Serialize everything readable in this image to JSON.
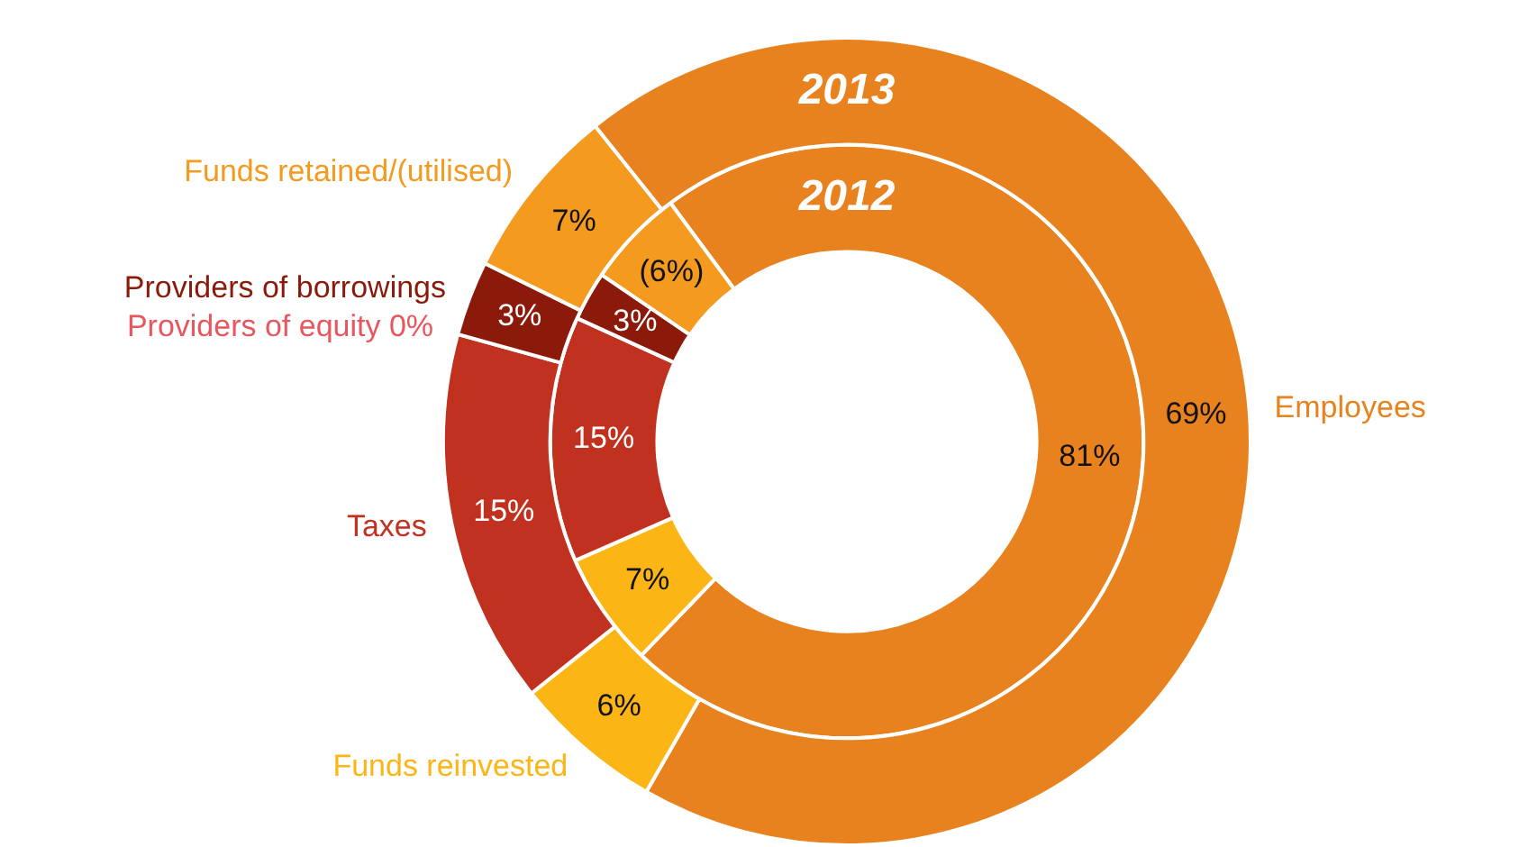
{
  "chart_data": {
    "type": "donut",
    "categories": [
      "Employees",
      "Funds reinvested",
      "Taxes",
      "Providers of equity",
      "Providers of borrowings",
      "Funds retained/(utilised)"
    ],
    "colors": [
      "#e8821e",
      "#fbb515",
      "#c0311f",
      "#e8575e",
      "#8b1a0b",
      "#f39a1f"
    ],
    "series": [
      {
        "name": "2013",
        "values": [
          69,
          6,
          15,
          0,
          3,
          7
        ],
        "value_labels": [
          "69%",
          "6%",
          "15%",
          "0%",
          "3%",
          "7%"
        ]
      },
      {
        "name": "2012",
        "values": [
          81,
          7,
          15,
          0,
          3,
          6
        ],
        "value_labels": [
          "81%",
          "7%",
          "15%",
          null,
          "3%",
          "(6%)"
        ]
      }
    ],
    "legend": false
  }
}
